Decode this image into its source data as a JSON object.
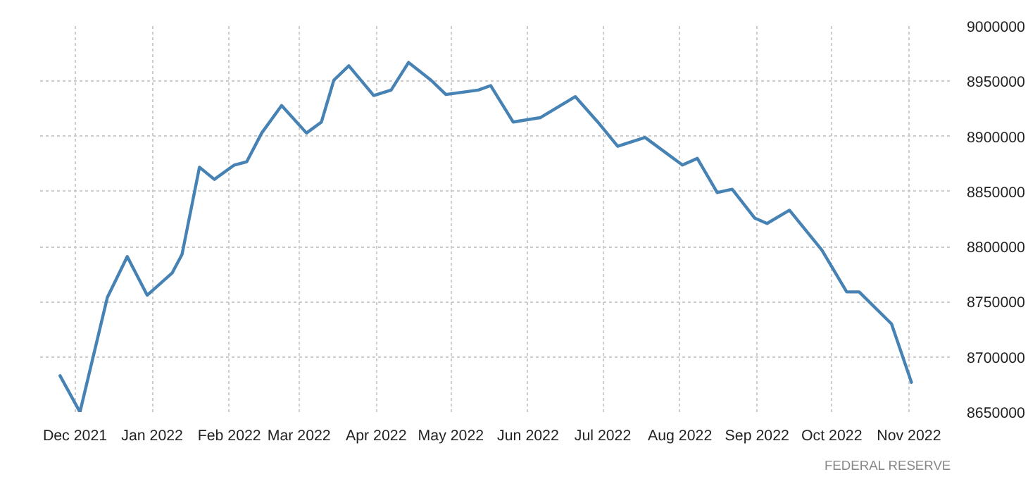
{
  "chart_data": {
    "type": "line",
    "x": [
      "2021-11-25",
      "2021-12-03",
      "2021-12-14",
      "2021-12-22",
      "2021-12-30",
      "2022-01-09",
      "2022-01-13",
      "2022-01-20",
      "2022-01-26",
      "2022-02-03",
      "2022-02-08",
      "2022-02-14",
      "2022-02-22",
      "2022-03-04",
      "2022-03-10",
      "2022-03-15",
      "2022-03-21",
      "2022-03-31",
      "2022-04-07",
      "2022-04-14",
      "2022-04-23",
      "2022-04-29",
      "2022-05-12",
      "2022-05-17",
      "2022-05-26",
      "2022-06-06",
      "2022-06-20",
      "2022-06-29",
      "2022-07-07",
      "2022-07-18",
      "2022-08-02",
      "2022-08-08",
      "2022-08-16",
      "2022-08-22",
      "2022-08-31",
      "2022-09-05",
      "2022-09-14",
      "2022-09-27",
      "2022-10-07",
      "2022-10-12",
      "2022-10-25",
      "2022-11-02"
    ],
    "series": [
      {
        "color": "#4682b4",
        "values": [
          8683000,
          8650000,
          8754000,
          8791000,
          8756000,
          8776000,
          8793000,
          8872000,
          8861000,
          8874000,
          8877000,
          8903000,
          8928000,
          8903000,
          8913000,
          8951000,
          8964000,
          8937000,
          8942000,
          8967000,
          8951000,
          8938000,
          8942000,
          8946000,
          8913000,
          8917000,
          8936000,
          8913000,
          8891000,
          8899000,
          8874000,
          8880000,
          8849000,
          8852000,
          8826000,
          8821000,
          8833000,
          8797000,
          8759000,
          8759000,
          8730000,
          8677000
        ]
      }
    ],
    "xlim": [
      "2021-11-17",
      "2022-11-18"
    ],
    "xticks": [
      {
        "value": "2021-12-01",
        "label": "Dec 2021"
      },
      {
        "value": "2022-01-01",
        "label": "Jan 2022"
      },
      {
        "value": "2022-02-01",
        "label": "Feb 2022"
      },
      {
        "value": "2022-03-01",
        "label": "Mar 2022"
      },
      {
        "value": "2022-04-01",
        "label": "Apr 2022"
      },
      {
        "value": "2022-05-01",
        "label": "May 2022"
      },
      {
        "value": "2022-06-01",
        "label": "Jun 2022"
      },
      {
        "value": "2022-07-01",
        "label": "Jul 2022"
      },
      {
        "value": "2022-08-01",
        "label": "Aug 2022"
      },
      {
        "value": "2022-09-01",
        "label": "Sep 2022"
      },
      {
        "value": "2022-10-01",
        "label": "Oct 2022"
      },
      {
        "value": "2022-11-01",
        "label": "Nov 2022"
      }
    ],
    "ylim": [
      8650000,
      9000000
    ],
    "yticks": [
      8650000,
      8700000,
      8750000,
      8800000,
      8850000,
      8900000,
      8950000,
      9000000
    ],
    "grid": true,
    "line_style": "solid",
    "annotations": [
      "FEDERAL RESERVE"
    ]
  }
}
